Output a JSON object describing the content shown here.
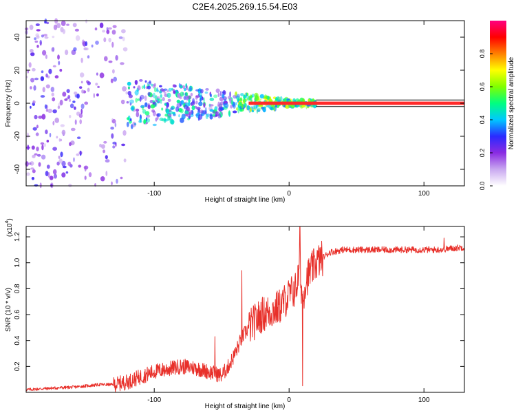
{
  "title": "C2E4.2025.269.15.54.E03",
  "colors": {
    "background": "#ffffff",
    "axis": "#000000",
    "snr_line": "#e8302a",
    "spectrogram_violet": "#7a2bd9",
    "spectrogram_ridge": "#ff2a2a"
  },
  "chart_data": [
    {
      "name": "spectrogram",
      "type": "heatmap",
      "title": "C2E4.2025.269.15.54.E03",
      "xlabel": "Height of straight line (km)",
      "ylabel": "Frequency (Hz)",
      "xlim": [
        -195,
        130
      ],
      "ylim": [
        -50,
        50
      ],
      "xticks": [
        -100,
        0,
        100
      ],
      "xtick_labels": [
        "-100",
        "0",
        "100"
      ],
      "yticks": [
        -40,
        -20,
        0,
        20,
        40
      ],
      "ytick_labels": [
        "-40",
        "-20",
        "0",
        "20",
        "40"
      ],
      "ridge": {
        "description": "narrow high-amplitude band near 0 Hz for heights above ~-30 km",
        "x_start": -30,
        "x_end": 130,
        "frequency_center": 0,
        "frequency_halfwidth": 1,
        "amplitude": 1.0
      },
      "colorbar": {
        "label": "Normalized spectral amplitude",
        "range": [
          0,
          1
        ],
        "ticks": [
          0.0,
          0.2,
          0.4,
          0.6,
          0.8
        ],
        "tick_labels": [
          "0.0",
          "0.2",
          "0.4",
          "0.6",
          "0.8"
        ],
        "colormap": [
          "#ffffff",
          "#c9a8f0",
          "#8a2be2",
          "#2a2aff",
          "#00c8ff",
          "#00ff80",
          "#80ff00",
          "#ffff00",
          "#ff8000",
          "#ff0000",
          "#ff0080"
        ]
      }
    },
    {
      "name": "snr",
      "type": "line",
      "xlabel": "Height of straight line (km)",
      "ylabel": "SNR (10 * v/v)",
      "y_multiplier": "(x10",
      "y_multiplier_exp": "4",
      "xlim": [
        -195,
        130
      ],
      "ylim": [
        0,
        1.28
      ],
      "xticks": [
        -100,
        0,
        100
      ],
      "xtick_labels": [
        "-100",
        "0",
        "100"
      ],
      "yticks": [
        0.2,
        0.4,
        0.6,
        0.8,
        1.0,
        1.2
      ],
      "ytick_labels": [
        "0.2",
        "0.4",
        "0.6",
        "0.8",
        "1.0",
        "1.2"
      ],
      "series": [
        {
          "name": "SNR",
          "x": [
            -195,
            -180,
            -160,
            -150,
            -140,
            -130,
            -120,
            -110,
            -100,
            -90,
            -80,
            -70,
            -60,
            -50,
            -45,
            -40,
            -35,
            -30,
            -25,
            -20,
            -15,
            -10,
            -5,
            0,
            5,
            8,
            10,
            12,
            15,
            20,
            30,
            40,
            60,
            80,
            100,
            110,
            120,
            130
          ],
          "y": [
            0.02,
            0.03,
            0.04,
            0.05,
            0.06,
            0.06,
            0.08,
            0.12,
            0.16,
            0.18,
            0.2,
            0.19,
            0.16,
            0.13,
            0.2,
            0.3,
            0.42,
            0.5,
            0.55,
            0.6,
            0.62,
            0.64,
            0.68,
            0.75,
            0.8,
            0.95,
            0.7,
            0.85,
            0.92,
            1.0,
            1.08,
            1.1,
            1.1,
            1.1,
            1.1,
            1.1,
            1.11,
            1.12
          ],
          "peaks": [
            {
              "x": -55,
              "y": 0.43
            },
            {
              "x": -35,
              "y": 0.94
            },
            {
              "x": 8,
              "y": 1.28
            },
            {
              "x": 10,
              "y": 0.05
            },
            {
              "x": 115,
              "y": 1.19
            }
          ]
        }
      ]
    }
  ]
}
